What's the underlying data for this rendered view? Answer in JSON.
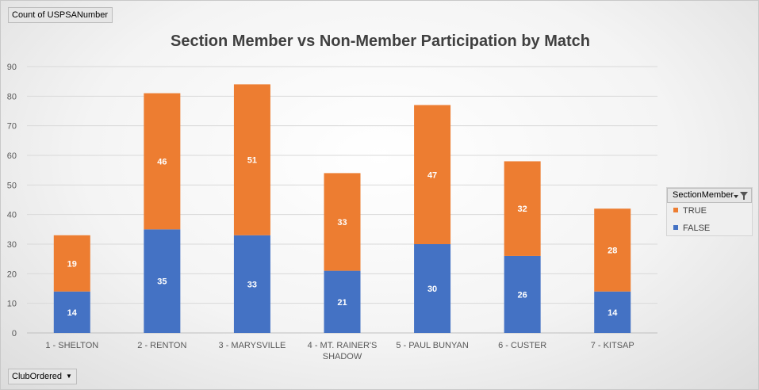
{
  "value_field_button": "Count of USPSANumber",
  "axis_field_button": "ClubOrdered",
  "legend": {
    "title": "SectionMember",
    "items": [
      {
        "label": "TRUE",
        "color": "#ed7d31"
      },
      {
        "label": "FALSE",
        "color": "#4472c4"
      }
    ]
  },
  "chart_data": {
    "type": "bar",
    "stacked": true,
    "title": "Section Member vs Non-Member Participation by Match",
    "xlabel": "",
    "ylabel": "",
    "categories": [
      "1 - SHELTON",
      "2 - RENTON",
      "3 - MARYSVILLE",
      "4 - MT. RAINER'S SHADOW",
      "5 - PAUL BUNYAN",
      "6 - CUSTER",
      "7 - KITSAP"
    ],
    "series": [
      {
        "name": "FALSE",
        "color": "#4472c4",
        "values": [
          14,
          35,
          33,
          21,
          30,
          26,
          14
        ]
      },
      {
        "name": "TRUE",
        "color": "#ed7d31",
        "values": [
          19,
          46,
          51,
          33,
          47,
          32,
          28
        ]
      }
    ],
    "ylim": [
      0,
      90
    ],
    "yticks": [
      0,
      10,
      20,
      30,
      40,
      50,
      60,
      70,
      80,
      90
    ],
    "grid": true,
    "legend_position": "right"
  }
}
